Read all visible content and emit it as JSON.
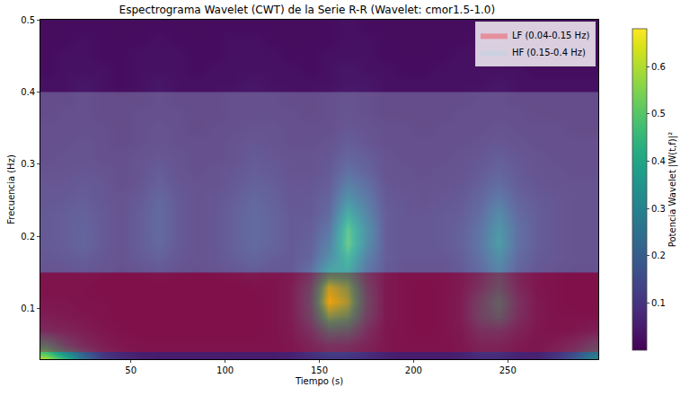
{
  "chart_data": {
    "type": "heatmap",
    "title": "Espectrograma Wavelet (CWT) de la Serie R-R (Wavelet: cmor1.5-1.0)",
    "x_label": "Tiempo (s)",
    "y_label": "Frecuencia (Hz)",
    "colorbar_label": "Potencia Wavelet |W(t,f)|²",
    "color": "Viridis",
    "legend": "upper right",
    "xlim": [
      2,
      298
    ],
    "xticks": [
      50,
      100,
      150,
      200,
      250
    ],
    "ylim": [
      0.03,
      0.5
    ],
    "yticks": [
      0.1,
      0.2,
      0.3,
      0.4,
      0.5
    ],
    "zlim": [
      0,
      0.68
    ],
    "zticks": [
      0.1,
      0.2,
      0.3,
      0.4,
      0.5,
      0.6
    ],
    "x": [
      5,
      15,
      25,
      35,
      45,
      55,
      65,
      75,
      85,
      95,
      105,
      115,
      125,
      135,
      145,
      155,
      165,
      175,
      185,
      195,
      205,
      215,
      225,
      235,
      245,
      255,
      265,
      275,
      285,
      295
    ],
    "y": [
      0.03,
      0.05,
      0.07,
      0.09,
      0.11,
      0.13,
      0.15,
      0.17,
      0.19,
      0.21,
      0.23,
      0.25,
      0.27,
      0.29,
      0.31,
      0.33,
      0.35,
      0.37,
      0.39,
      0.41,
      0.43,
      0.45,
      0.47,
      0.49
    ],
    "z": [
      [
        0.6,
        0.45,
        0.25,
        0.12,
        0.08,
        0.06,
        0.05,
        0.05,
        0.05,
        0.05,
        0.05,
        0.05,
        0.05,
        0.06,
        0.08,
        0.1,
        0.1,
        0.08,
        0.06,
        0.05,
        0.05,
        0.05,
        0.06,
        0.08,
        0.08,
        0.06,
        0.06,
        0.1,
        0.18,
        0.3
      ],
      [
        0.35,
        0.2,
        0.12,
        0.08,
        0.06,
        0.05,
        0.05,
        0.05,
        0.05,
        0.05,
        0.05,
        0.05,
        0.05,
        0.06,
        0.1,
        0.15,
        0.14,
        0.1,
        0.06,
        0.05,
        0.05,
        0.05,
        0.06,
        0.1,
        0.1,
        0.07,
        0.06,
        0.08,
        0.12,
        0.2
      ],
      [
        0.12,
        0.1,
        0.08,
        0.06,
        0.05,
        0.04,
        0.04,
        0.04,
        0.04,
        0.04,
        0.04,
        0.04,
        0.05,
        0.07,
        0.14,
        0.3,
        0.28,
        0.14,
        0.06,
        0.05,
        0.04,
        0.05,
        0.07,
        0.14,
        0.15,
        0.1,
        0.06,
        0.05,
        0.06,
        0.08
      ],
      [
        0.08,
        0.07,
        0.06,
        0.05,
        0.04,
        0.04,
        0.04,
        0.04,
        0.04,
        0.04,
        0.04,
        0.04,
        0.05,
        0.08,
        0.2,
        0.5,
        0.45,
        0.2,
        0.07,
        0.05,
        0.04,
        0.05,
        0.08,
        0.2,
        0.28,
        0.14,
        0.07,
        0.05,
        0.05,
        0.05
      ],
      [
        0.06,
        0.06,
        0.05,
        0.05,
        0.04,
        0.04,
        0.04,
        0.04,
        0.04,
        0.04,
        0.04,
        0.04,
        0.05,
        0.08,
        0.22,
        0.66,
        0.55,
        0.22,
        0.07,
        0.05,
        0.04,
        0.05,
        0.08,
        0.2,
        0.32,
        0.15,
        0.07,
        0.05,
        0.04,
        0.04
      ],
      [
        0.05,
        0.05,
        0.05,
        0.04,
        0.04,
        0.04,
        0.04,
        0.04,
        0.04,
        0.04,
        0.04,
        0.05,
        0.05,
        0.08,
        0.2,
        0.6,
        0.5,
        0.2,
        0.07,
        0.05,
        0.04,
        0.05,
        0.07,
        0.15,
        0.25,
        0.12,
        0.06,
        0.05,
        0.04,
        0.04
      ],
      [
        0.05,
        0.05,
        0.06,
        0.05,
        0.04,
        0.05,
        0.06,
        0.05,
        0.04,
        0.05,
        0.06,
        0.07,
        0.06,
        0.07,
        0.14,
        0.35,
        0.35,
        0.16,
        0.07,
        0.05,
        0.05,
        0.05,
        0.07,
        0.12,
        0.2,
        0.1,
        0.06,
        0.05,
        0.04,
        0.04
      ],
      [
        0.06,
        0.07,
        0.08,
        0.06,
        0.05,
        0.07,
        0.09,
        0.06,
        0.05,
        0.06,
        0.08,
        0.1,
        0.08,
        0.07,
        0.1,
        0.25,
        0.42,
        0.2,
        0.08,
        0.06,
        0.06,
        0.06,
        0.08,
        0.14,
        0.25,
        0.12,
        0.07,
        0.06,
        0.05,
        0.05
      ],
      [
        0.07,
        0.08,
        0.1,
        0.07,
        0.05,
        0.08,
        0.11,
        0.07,
        0.05,
        0.06,
        0.09,
        0.12,
        0.1,
        0.07,
        0.09,
        0.2,
        0.5,
        0.25,
        0.08,
        0.06,
        0.06,
        0.07,
        0.09,
        0.16,
        0.3,
        0.14,
        0.08,
        0.06,
        0.05,
        0.05
      ],
      [
        0.07,
        0.08,
        0.1,
        0.07,
        0.05,
        0.08,
        0.12,
        0.07,
        0.05,
        0.06,
        0.09,
        0.12,
        0.1,
        0.07,
        0.08,
        0.16,
        0.48,
        0.26,
        0.08,
        0.06,
        0.06,
        0.07,
        0.09,
        0.15,
        0.28,
        0.14,
        0.08,
        0.06,
        0.05,
        0.05
      ],
      [
        0.07,
        0.08,
        0.09,
        0.07,
        0.05,
        0.08,
        0.12,
        0.07,
        0.05,
        0.06,
        0.09,
        0.12,
        0.1,
        0.07,
        0.07,
        0.12,
        0.38,
        0.22,
        0.08,
        0.06,
        0.06,
        0.07,
        0.08,
        0.13,
        0.24,
        0.12,
        0.08,
        0.06,
        0.05,
        0.05
      ],
      [
        0.06,
        0.07,
        0.08,
        0.06,
        0.05,
        0.07,
        0.11,
        0.07,
        0.05,
        0.06,
        0.08,
        0.11,
        0.09,
        0.06,
        0.07,
        0.1,
        0.28,
        0.18,
        0.07,
        0.06,
        0.05,
        0.06,
        0.07,
        0.11,
        0.18,
        0.1,
        0.07,
        0.06,
        0.05,
        0.05
      ],
      [
        0.06,
        0.06,
        0.07,
        0.06,
        0.04,
        0.06,
        0.09,
        0.06,
        0.05,
        0.05,
        0.07,
        0.09,
        0.08,
        0.06,
        0.06,
        0.08,
        0.2,
        0.14,
        0.06,
        0.05,
        0.05,
        0.05,
        0.06,
        0.09,
        0.13,
        0.08,
        0.06,
        0.05,
        0.05,
        0.05
      ],
      [
        0.05,
        0.05,
        0.06,
        0.05,
        0.04,
        0.05,
        0.08,
        0.05,
        0.04,
        0.05,
        0.06,
        0.08,
        0.07,
        0.05,
        0.05,
        0.07,
        0.14,
        0.1,
        0.05,
        0.05,
        0.04,
        0.05,
        0.05,
        0.07,
        0.1,
        0.07,
        0.05,
        0.05,
        0.04,
        0.04
      ],
      [
        0.04,
        0.05,
        0.05,
        0.04,
        0.04,
        0.05,
        0.06,
        0.05,
        0.04,
        0.04,
        0.05,
        0.07,
        0.06,
        0.05,
        0.05,
        0.06,
        0.1,
        0.08,
        0.05,
        0.04,
        0.04,
        0.04,
        0.05,
        0.06,
        0.08,
        0.06,
        0.05,
        0.04,
        0.04,
        0.04
      ],
      [
        0.04,
        0.04,
        0.05,
        0.04,
        0.03,
        0.04,
        0.05,
        0.04,
        0.04,
        0.04,
        0.05,
        0.06,
        0.05,
        0.04,
        0.04,
        0.05,
        0.08,
        0.06,
        0.04,
        0.04,
        0.04,
        0.04,
        0.04,
        0.05,
        0.06,
        0.05,
        0.04,
        0.04,
        0.04,
        0.04
      ],
      [
        0.04,
        0.04,
        0.04,
        0.04,
        0.03,
        0.04,
        0.05,
        0.04,
        0.03,
        0.04,
        0.04,
        0.05,
        0.05,
        0.04,
        0.04,
        0.04,
        0.06,
        0.05,
        0.04,
        0.04,
        0.03,
        0.04,
        0.04,
        0.04,
        0.05,
        0.04,
        0.04,
        0.04,
        0.03,
        0.03
      ],
      [
        0.03,
        0.04,
        0.04,
        0.03,
        0.03,
        0.04,
        0.04,
        0.04,
        0.03,
        0.03,
        0.04,
        0.04,
        0.04,
        0.04,
        0.03,
        0.04,
        0.05,
        0.04,
        0.03,
        0.03,
        0.03,
        0.03,
        0.04,
        0.04,
        0.04,
        0.04,
        0.03,
        0.03,
        0.03,
        0.03
      ],
      [
        0.03,
        0.03,
        0.04,
        0.03,
        0.03,
        0.03,
        0.04,
        0.03,
        0.03,
        0.03,
        0.04,
        0.04,
        0.04,
        0.03,
        0.03,
        0.04,
        0.05,
        0.04,
        0.03,
        0.03,
        0.03,
        0.03,
        0.03,
        0.04,
        0.04,
        0.03,
        0.03,
        0.03,
        0.03,
        0.03
      ],
      [
        0.03,
        0.03,
        0.04,
        0.03,
        0.02,
        0.03,
        0.04,
        0.03,
        0.03,
        0.03,
        0.03,
        0.04,
        0.03,
        0.03,
        0.03,
        0.03,
        0.04,
        0.04,
        0.03,
        0.03,
        0.03,
        0.03,
        0.03,
        0.03,
        0.04,
        0.03,
        0.03,
        0.03,
        0.03,
        0.03
      ],
      [
        0.02,
        0.03,
        0.03,
        0.03,
        0.02,
        0.03,
        0.03,
        0.03,
        0.02,
        0.03,
        0.03,
        0.03,
        0.03,
        0.03,
        0.02,
        0.03,
        0.04,
        0.03,
        0.03,
        0.02,
        0.02,
        0.03,
        0.03,
        0.03,
        0.03,
        0.03,
        0.02,
        0.02,
        0.02,
        0.02
      ],
      [
        0.02,
        0.03,
        0.03,
        0.02,
        0.02,
        0.03,
        0.03,
        0.03,
        0.02,
        0.02,
        0.03,
        0.03,
        0.03,
        0.02,
        0.02,
        0.03,
        0.03,
        0.03,
        0.02,
        0.02,
        0.02,
        0.02,
        0.03,
        0.03,
        0.03,
        0.02,
        0.02,
        0.02,
        0.02,
        0.02
      ],
      [
        0.02,
        0.02,
        0.03,
        0.02,
        0.02,
        0.02,
        0.03,
        0.02,
        0.02,
        0.02,
        0.03,
        0.03,
        0.02,
        0.02,
        0.02,
        0.02,
        0.03,
        0.03,
        0.02,
        0.02,
        0.02,
        0.02,
        0.02,
        0.03,
        0.03,
        0.02,
        0.02,
        0.02,
        0.02,
        0.02
      ],
      [
        0.02,
        0.02,
        0.02,
        0.02,
        0.02,
        0.02,
        0.02,
        0.02,
        0.02,
        0.02,
        0.02,
        0.02,
        0.02,
        0.02,
        0.02,
        0.02,
        0.03,
        0.02,
        0.02,
        0.02,
        0.02,
        0.02,
        0.02,
        0.02,
        0.02,
        0.02,
        0.02,
        0.02,
        0.02,
        0.02
      ]
    ],
    "series": [
      {
        "name": "LF (0.04-0.15 Hz)",
        "type": "area",
        "color": "red",
        "values": [
          0.04,
          0.15
        ]
      },
      {
        "name": "HF (0.15-0.4 Hz)",
        "type": "area",
        "color": "lightblue",
        "values": [
          0.15,
          0.4
        ]
      }
    ]
  }
}
